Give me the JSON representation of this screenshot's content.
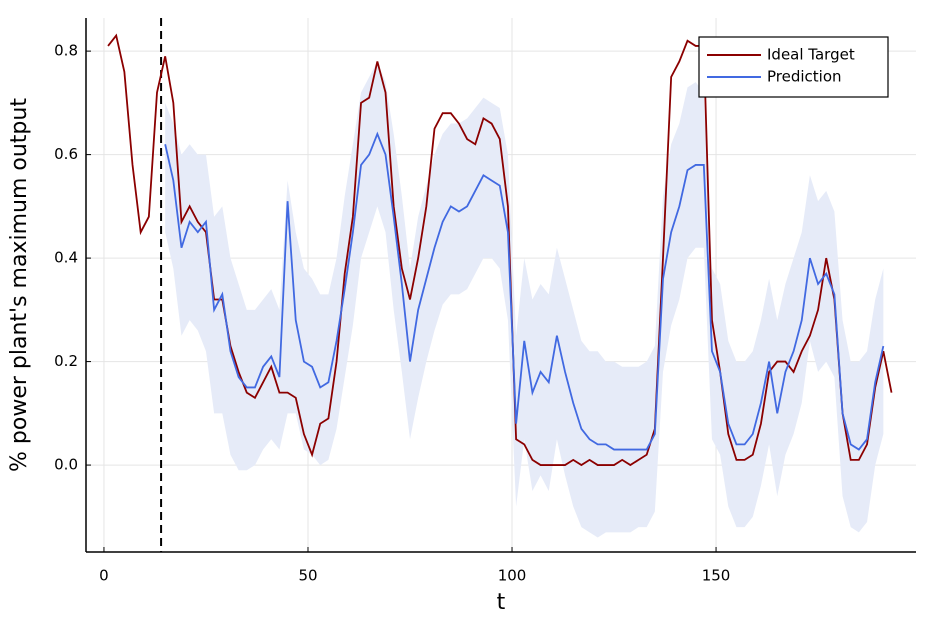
{
  "chart_data": {
    "type": "line",
    "xlabel": "t",
    "ylabel": "% power plant's maximum output",
    "x": [
      1,
      3,
      5,
      7,
      9,
      11,
      13,
      15,
      17,
      19,
      21,
      23,
      25,
      27,
      29,
      31,
      33,
      35,
      37,
      39,
      41,
      43,
      45,
      47,
      49,
      51,
      53,
      55,
      57,
      59,
      61,
      63,
      65,
      67,
      69,
      71,
      73,
      75,
      77,
      79,
      81,
      83,
      85,
      87,
      89,
      91,
      93,
      95,
      97,
      99,
      101,
      103,
      105,
      107,
      109,
      111,
      113,
      115,
      117,
      119,
      121,
      123,
      125,
      127,
      129,
      131,
      133,
      135,
      137,
      139,
      141,
      143,
      145,
      147,
      149,
      151,
      153,
      155,
      157,
      159,
      161,
      163,
      165,
      167,
      169,
      171,
      173,
      175,
      177,
      179,
      181,
      183,
      185,
      187,
      189,
      191,
      193
    ],
    "series": [
      {
        "name": "Ideal Target",
        "color": "#8b0000",
        "values": [
          0.81,
          0.83,
          0.76,
          0.58,
          0.45,
          0.48,
          0.72,
          0.79,
          0.7,
          0.47,
          0.5,
          0.47,
          0.45,
          0.32,
          0.32,
          0.23,
          0.18,
          0.14,
          0.13,
          0.16,
          0.19,
          0.14,
          0.14,
          0.13,
          0.06,
          0.02,
          0.08,
          0.09,
          0.2,
          0.37,
          0.48,
          0.7,
          0.71,
          0.78,
          0.72,
          0.5,
          0.38,
          0.32,
          0.4,
          0.5,
          0.65,
          0.68,
          0.68,
          0.66,
          0.63,
          0.62,
          0.67,
          0.66,
          0.63,
          0.5,
          0.05,
          0.04,
          0.01,
          0,
          0,
          0,
          0,
          0.01,
          0,
          0.01,
          0,
          0,
          0,
          0.01,
          0,
          0.01,
          0.02,
          0.07,
          0.4,
          0.75,
          0.78,
          0.82,
          0.81,
          0.81,
          0.28,
          0.18,
          0.06,
          0.01,
          0.01,
          0.02,
          0.08,
          0.18,
          0.2,
          0.2,
          0.18,
          0.22,
          0.25,
          0.3,
          0.4,
          0.32,
          0.1,
          0.01,
          0.01,
          0.04,
          0.15,
          0.22,
          0.14
        ]
      },
      {
        "name": "Prediction",
        "color": "#4169e1",
        "values": [
          null,
          null,
          null,
          null,
          null,
          null,
          null,
          0.62,
          0.55,
          0.42,
          0.47,
          0.45,
          0.47,
          0.3,
          0.33,
          0.22,
          0.17,
          0.15,
          0.15,
          0.19,
          0.21,
          0.17,
          0.51,
          0.28,
          0.2,
          0.19,
          0.15,
          0.16,
          0.24,
          0.34,
          0.45,
          0.58,
          0.6,
          0.64,
          0.6,
          0.48,
          0.35,
          0.2,
          0.3,
          0.36,
          0.42,
          0.47,
          0.5,
          0.49,
          0.5,
          0.53,
          0.56,
          0.55,
          0.54,
          0.45,
          0.08,
          0.24,
          0.14,
          0.18,
          0.16,
          0.25,
          0.18,
          0.12,
          0.07,
          0.05,
          0.04,
          0.04,
          0.03,
          0.03,
          0.03,
          0.03,
          0.03,
          0.06,
          0.36,
          0.45,
          0.5,
          0.57,
          0.58,
          0.58,
          0.22,
          0.18,
          0.08,
          0.04,
          0.04,
          0.06,
          0.12,
          0.2,
          0.1,
          0.18,
          0.22,
          0.28,
          0.4,
          0.35,
          0.37,
          0.33,
          0.1,
          0.04,
          0.03,
          0.05,
          0.16,
          0.23,
          null
        ]
      }
    ],
    "band": {
      "color": "#e6ebf8",
      "lower": [
        null,
        null,
        null,
        null,
        null,
        null,
        null,
        0.45,
        0.38,
        0.25,
        0.28,
        0.26,
        0.22,
        0.1,
        0.1,
        0.02,
        -0.01,
        -0.01,
        0,
        0.03,
        0.05,
        0.03,
        0.1,
        0.1,
        0.03,
        0.02,
        0,
        0.01,
        0.07,
        0.17,
        0.27,
        0.4,
        0.45,
        0.5,
        0.45,
        0.3,
        0.18,
        0.05,
        0.13,
        0.2,
        0.26,
        0.31,
        0.33,
        0.33,
        0.34,
        0.37,
        0.4,
        0.4,
        0.38,
        0.28,
        -0.08,
        0.05,
        -0.05,
        -0.02,
        -0.05,
        0.05,
        -0.02,
        -0.08,
        -0.12,
        -0.13,
        -0.14,
        -0.13,
        -0.13,
        -0.13,
        -0.13,
        -0.12,
        -0.12,
        -0.09,
        0.18,
        0.27,
        0.32,
        0.4,
        0.42,
        0.42,
        0.05,
        0.02,
        -0.08,
        -0.12,
        -0.12,
        -0.1,
        -0.04,
        0.04,
        -0.06,
        0.02,
        0.06,
        0.12,
        0.24,
        0.18,
        0.2,
        0.17,
        -0.06,
        -0.12,
        -0.13,
        -0.11,
        0,
        0.06,
        null
      ],
      "upper": [
        null,
        null,
        null,
        null,
        null,
        null,
        null,
        0.7,
        0.66,
        0.6,
        0.62,
        0.6,
        0.6,
        0.48,
        0.5,
        0.4,
        0.35,
        0.3,
        0.3,
        0.32,
        0.34,
        0.3,
        0.55,
        0.45,
        0.38,
        0.36,
        0.33,
        0.33,
        0.4,
        0.52,
        0.62,
        0.72,
        0.75,
        0.78,
        0.74,
        0.64,
        0.52,
        0.38,
        0.48,
        0.54,
        0.6,
        0.64,
        0.66,
        0.66,
        0.67,
        0.69,
        0.71,
        0.7,
        0.69,
        0.6,
        0.25,
        0.4,
        0.32,
        0.35,
        0.33,
        0.42,
        0.36,
        0.3,
        0.24,
        0.22,
        0.22,
        0.2,
        0.2,
        0.19,
        0.19,
        0.19,
        0.2,
        0.23,
        0.52,
        0.62,
        0.66,
        0.73,
        0.74,
        0.72,
        0.38,
        0.35,
        0.24,
        0.2,
        0.2,
        0.22,
        0.28,
        0.36,
        0.28,
        0.35,
        0.4,
        0.45,
        0.56,
        0.51,
        0.53,
        0.49,
        0.28,
        0.2,
        0.2,
        0.22,
        0.32,
        0.38,
        null
      ]
    },
    "vline": 14,
    "xlim": [
      -4.4,
      199
    ],
    "ylim": [
      -0.168,
      0.864
    ],
    "xticks": [
      0,
      50,
      100,
      150
    ],
    "yticks": [
      {
        "value": 0,
        "label": "0.0"
      },
      0.2,
      0.4,
      0.6,
      0.8
    ],
    "grid": true,
    "legend": "upper right"
  }
}
